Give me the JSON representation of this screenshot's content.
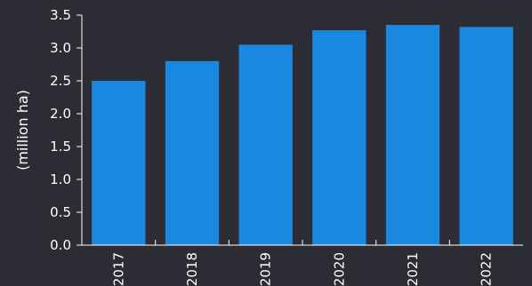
{
  "chart_data": {
    "type": "bar",
    "categories": [
      "2017",
      "2018",
      "2019",
      "2020",
      "2021",
      "2022"
    ],
    "values": [
      2.5,
      2.8,
      3.05,
      3.27,
      3.35,
      3.32
    ],
    "ylabel": "(million ha)",
    "xlabel": "",
    "ylim": [
      0,
      3.5
    ],
    "yticks": [
      "0.0",
      "0.5",
      "1.0",
      "1.5",
      "2.0",
      "2.5",
      "3.0",
      "3.5"
    ],
    "grid": false,
    "legend": "none"
  },
  "colors": {
    "background": "#2c2c35",
    "bar": "#1a88e0",
    "text": "#ffffff",
    "axis": "#ffffff"
  }
}
